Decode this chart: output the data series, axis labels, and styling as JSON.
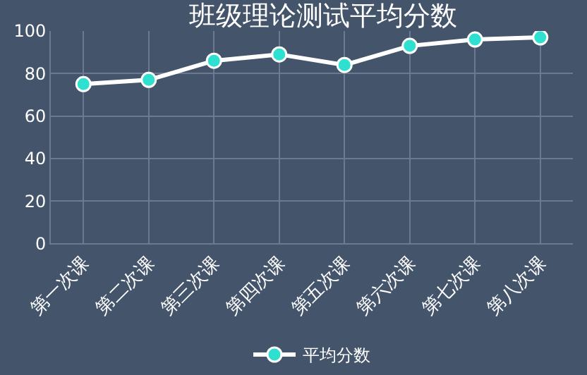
{
  "chart_data": {
    "type": "line",
    "title": "班级理论测试平均分数",
    "categories": [
      "第一次课",
      "第二次课",
      "第三次课",
      "第四次课",
      "第五次课",
      "第六次课",
      "第七次课",
      "第八次课"
    ],
    "series": [
      {
        "name": "平均分数",
        "color": "#ffffff",
        "values": [
          75,
          77,
          86,
          89,
          84,
          93,
          96,
          97
        ]
      }
    ],
    "ylim": [
      0,
      100
    ],
    "yticks": [
      0,
      20,
      40,
      60,
      80,
      100
    ],
    "grid": true,
    "legend": "bottom",
    "marker": "circle",
    "line_style": "solid"
  }
}
